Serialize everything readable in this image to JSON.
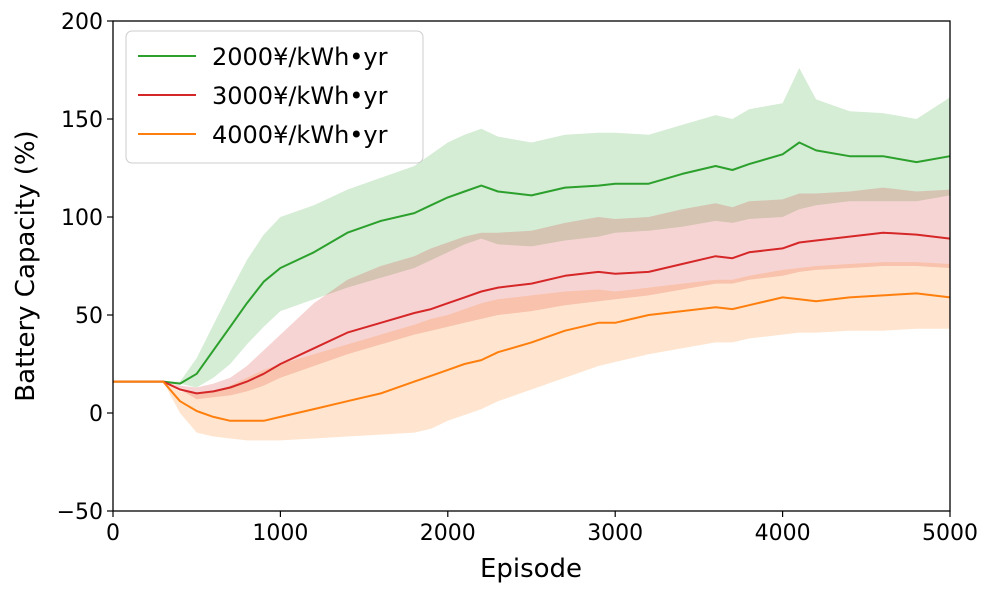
{
  "chart_data": {
    "type": "line",
    "title": "",
    "xlabel": "Episode",
    "ylabel": "Battery Capacity (%)",
    "xlim": [
      0,
      5000
    ],
    "ylim": [
      -50,
      200
    ],
    "xticks": [
      0,
      1000,
      2000,
      3000,
      4000,
      5000
    ],
    "xtick_labels": [
      "0",
      "1000",
      "2000",
      "3000",
      "4000",
      "5000"
    ],
    "yticks": [
      -50,
      0,
      50,
      100,
      150,
      200
    ],
    "ytick_labels": [
      "−50",
      "0",
      "50",
      "100",
      "150",
      "200"
    ],
    "grid": false,
    "legend_position": "top-left",
    "series": [
      {
        "name": "2000¥/kWh•yr",
        "color": "#2ca02c",
        "x": [
          0,
          300,
          400,
          500,
          600,
          700,
          800,
          900,
          1000,
          1200,
          1400,
          1600,
          1800,
          1900,
          2000,
          2100,
          2200,
          2300,
          2500,
          2700,
          2900,
          3000,
          3200,
          3400,
          3600,
          3700,
          3800,
          4000,
          4100,
          4200,
          4400,
          4600,
          4800,
          5000
        ],
        "mean": [
          16,
          16,
          15,
          20,
          32,
          44,
          56,
          67,
          74,
          82,
          92,
          98,
          102,
          106,
          110,
          113,
          116,
          113,
          111,
          115,
          116,
          117,
          117,
          122,
          126,
          124,
          127,
          132,
          138,
          134,
          131,
          131,
          128,
          131
        ],
        "lower": [
          16,
          16,
          15,
          13,
          18,
          25,
          35,
          44,
          52,
          58,
          64,
          69,
          74,
          78,
          82,
          86,
          89,
          86,
          85,
          88,
          90,
          92,
          93,
          95,
          98,
          97,
          99,
          100,
          104,
          106,
          108,
          108,
          108,
          111
        ],
        "upper": [
          16,
          16,
          16,
          28,
          45,
          62,
          78,
          91,
          100,
          106,
          114,
          120,
          126,
          132,
          138,
          142,
          145,
          141,
          138,
          142,
          143,
          143,
          142,
          147,
          152,
          150,
          155,
          158,
          176,
          160,
          154,
          153,
          150,
          161
        ]
      },
      {
        "name": "3000¥/kWh•yr",
        "color": "#d62728",
        "x": [
          0,
          300,
          400,
          500,
          600,
          700,
          800,
          900,
          1000,
          1200,
          1400,
          1600,
          1800,
          1900,
          2000,
          2100,
          2200,
          2300,
          2500,
          2700,
          2900,
          3000,
          3200,
          3400,
          3600,
          3700,
          3800,
          4000,
          4100,
          4200,
          4400,
          4600,
          4800,
          5000
        ],
        "mean": [
          16,
          16,
          12,
          10,
          11,
          13,
          16,
          20,
          25,
          33,
          41,
          46,
          51,
          53,
          56,
          59,
          62,
          64,
          66,
          70,
          72,
          71,
          72,
          76,
          80,
          79,
          82,
          84,
          87,
          88,
          90,
          92,
          91,
          89
        ],
        "lower": [
          16,
          16,
          12,
          7,
          8,
          9,
          11,
          14,
          18,
          24,
          30,
          35,
          40,
          42,
          44,
          46,
          48,
          50,
          52,
          55,
          57,
          58,
          60,
          63,
          66,
          66,
          68,
          70,
          72,
          73,
          74,
          75,
          75,
          74
        ],
        "upper": [
          16,
          16,
          14,
          13,
          15,
          18,
          24,
          32,
          40,
          56,
          68,
          75,
          80,
          84,
          87,
          90,
          92,
          92,
          93,
          97,
          100,
          99,
          100,
          104,
          107,
          105,
          108,
          109,
          112,
          112,
          113,
          115,
          113,
          114
        ]
      },
      {
        "name": "4000¥/kWh•yr",
        "color": "#ff7f0e",
        "x": [
          0,
          300,
          400,
          500,
          600,
          700,
          800,
          900,
          1000,
          1200,
          1400,
          1600,
          1800,
          1900,
          2000,
          2100,
          2200,
          2300,
          2500,
          2700,
          2900,
          3000,
          3200,
          3400,
          3600,
          3700,
          3800,
          4000,
          4100,
          4200,
          4400,
          4600,
          4800,
          5000
        ],
        "mean": [
          16,
          16,
          6,
          1,
          -2,
          -4,
          -4,
          -4,
          -2,
          2,
          6,
          10,
          16,
          19,
          22,
          25,
          27,
          31,
          36,
          42,
          46,
          46,
          50,
          52,
          54,
          53,
          55,
          59,
          58,
          57,
          59,
          60,
          61,
          59
        ],
        "lower": [
          16,
          16,
          0,
          -10,
          -12,
          -13,
          -14,
          -14,
          -14,
          -13,
          -12,
          -11,
          -10,
          -8,
          -4,
          -1,
          2,
          6,
          12,
          18,
          24,
          26,
          30,
          33,
          36,
          36,
          38,
          40,
          41,
          41,
          42,
          42,
          43,
          43
        ],
        "upper": [
          16,
          16,
          11,
          10,
          11,
          14,
          18,
          22,
          25,
          30,
          35,
          40,
          45,
          48,
          50,
          53,
          56,
          58,
          60,
          62,
          63,
          62,
          64,
          66,
          68,
          68,
          70,
          73,
          74,
          75,
          76,
          77,
          77,
          76
        ]
      }
    ]
  }
}
